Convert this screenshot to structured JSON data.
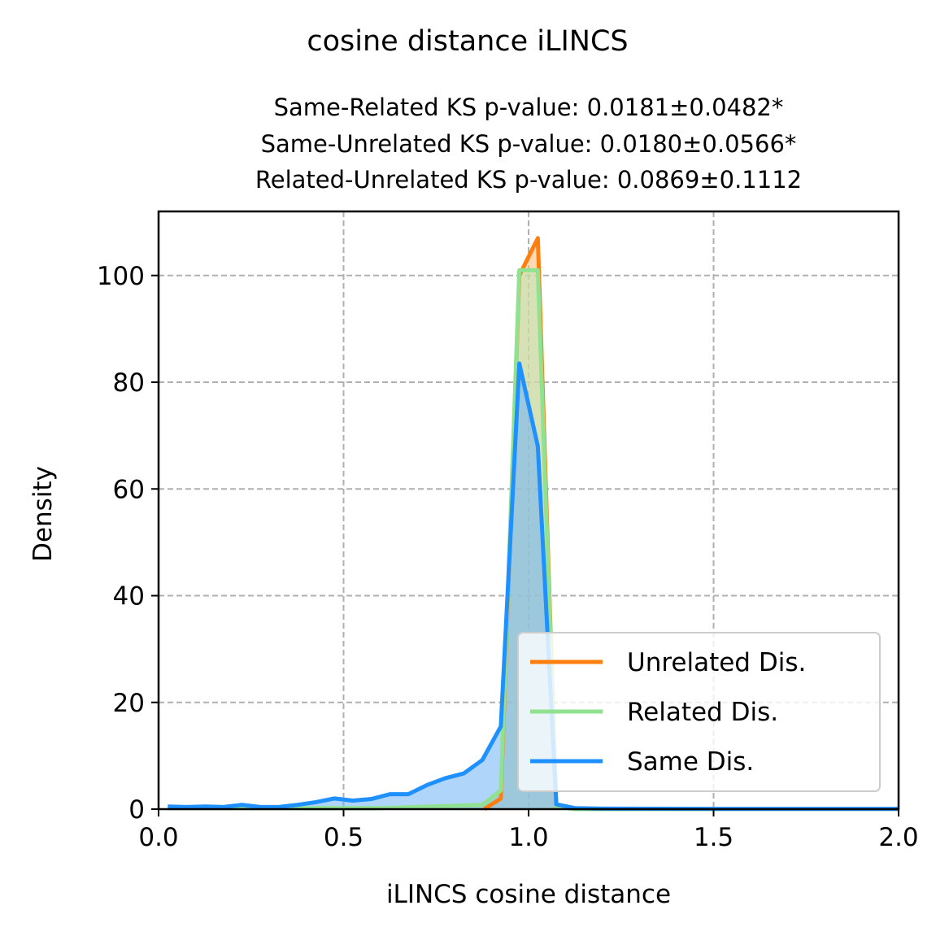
{
  "chart_data": {
    "type": "area",
    "title": "cosine distance iLINCS",
    "subtitle_lines": [
      "Same-Related KS p-value: 0.0181±0.0482*",
      "Same-Unrelated KS p-value: 0.0180±0.0566*",
      "Related-Unrelated KS p-value: 0.0869±0.1112"
    ],
    "xlabel": "iLINCS cosine distance",
    "ylabel": "Density",
    "xlim": [
      0,
      2
    ],
    "ylim": [
      0,
      112
    ],
    "x_ticks": [
      0,
      0.5,
      1,
      1.5,
      2
    ],
    "x_tick_labels": [
      "0.0",
      "0.5",
      "1.0",
      "1.5",
      "2.0"
    ],
    "y_ticks": [
      0,
      20,
      40,
      60,
      80,
      100
    ],
    "y_tick_labels": [
      "0",
      "20",
      "40",
      "60",
      "80",
      "100"
    ],
    "grid": true,
    "legend_position": "lower-right",
    "series": [
      {
        "name": "Unrelated Dis.",
        "color": "#ff7f0e",
        "fill": "#ffbb78",
        "points": [
          [
            0.88,
            0
          ],
          [
            0.925,
            2
          ],
          [
            0.975,
            100
          ],
          [
            1.025,
            107
          ],
          [
            1.075,
            0
          ]
        ]
      },
      {
        "name": "Related Dis.",
        "color": "#90e290",
        "fill": "#b4e8b4",
        "points": [
          [
            0.025,
            0.2
          ],
          [
            0.6,
            0.2
          ],
          [
            0.875,
            0.8
          ],
          [
            0.925,
            3.5
          ],
          [
            0.975,
            101
          ],
          [
            1.025,
            101
          ],
          [
            1.075,
            0.5
          ],
          [
            1.125,
            0
          ],
          [
            2.0,
            0
          ]
        ]
      },
      {
        "name": "Same Dis.",
        "color": "#1e90ff",
        "fill": "#6fb3f8",
        "points": [
          [
            0.025,
            0.5
          ],
          [
            0.075,
            0.4
          ],
          [
            0.125,
            0.5
          ],
          [
            0.175,
            0.4
          ],
          [
            0.225,
            0.8
          ],
          [
            0.275,
            0.4
          ],
          [
            0.325,
            0.4
          ],
          [
            0.375,
            0.8
          ],
          [
            0.425,
            1.3
          ],
          [
            0.475,
            2.0
          ],
          [
            0.525,
            1.6
          ],
          [
            0.575,
            1.9
          ],
          [
            0.625,
            2.8
          ],
          [
            0.675,
            2.8
          ],
          [
            0.725,
            4.5
          ],
          [
            0.775,
            5.8
          ],
          [
            0.825,
            6.7
          ],
          [
            0.875,
            9.2
          ],
          [
            0.925,
            15.5
          ],
          [
            0.975,
            83.5
          ],
          [
            1.025,
            68
          ],
          [
            1.075,
            0.9
          ],
          [
            1.125,
            0.2
          ],
          [
            1.2,
            0.1
          ],
          [
            1.5,
            0.05
          ],
          [
            2.0,
            0.05
          ]
        ]
      }
    ]
  }
}
